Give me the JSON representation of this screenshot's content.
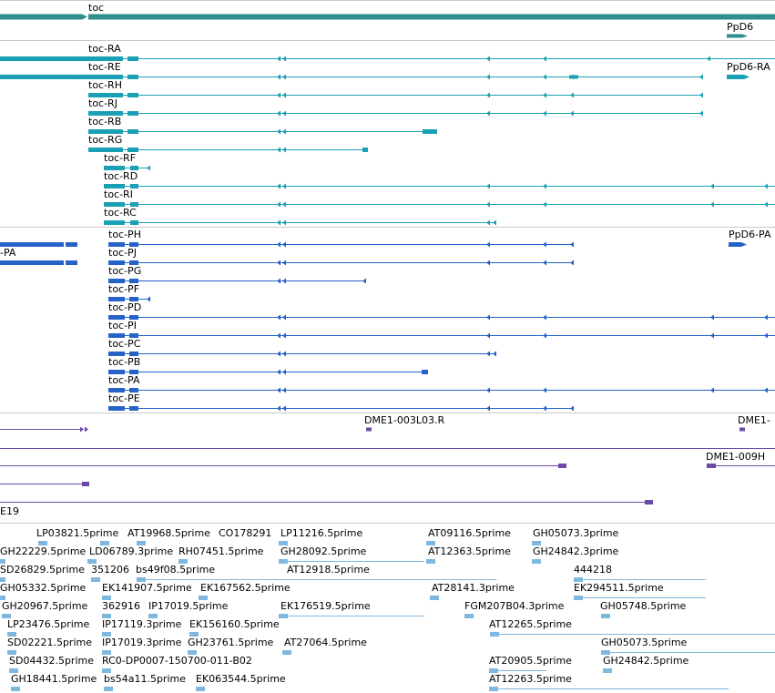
{
  "colors": {
    "gene": "#2f8f8c",
    "transcript": "#1aa0b4",
    "cds": "#2563c9",
    "oligo": "#6b4aa8",
    "est": "#7fb8df",
    "separator": "#c9c9c9"
  },
  "gene_track": {
    "labels": [
      "toc",
      "PpD6"
    ]
  },
  "transcript_track": {
    "labels": [
      "toc-RA",
      "toc-RE",
      "PpD6-RA",
      "toc-RH",
      "toc-RJ",
      "toc-RB",
      "toc-RG",
      "toc-RF",
      "toc-RD",
      "toc-RI",
      "toc-RC"
    ]
  },
  "cds_track": {
    "labels": [
      "toc-PH",
      "PpD6-PA",
      "-PA",
      "toc-PJ",
      "toc-PG",
      "toc-PF",
      "toc-PD",
      "toc-PI",
      "toc-PC",
      "toc-PB",
      "toc-PA",
      "toc-PE"
    ]
  },
  "oligo_track": {
    "labels": [
      "DME1-003L03.R",
      "DME1-",
      "DME1-009H",
      "E19"
    ]
  },
  "est_track": {
    "labels": [
      "LP03821.5prime",
      "AT19968.5prime",
      "CO178291",
      "LP11216.5prime",
      "AT09116.5prime",
      "GH05073.3prime",
      "GH22229.5prime",
      "LD06789.3prime",
      "RH07451.5prime",
      "GH28092.5prime",
      "AT12363.5prime",
      "GH24842.3prime",
      "SD26829.5prime",
      "351206",
      "bs49f08.5prime",
      "AT12918.5prime",
      "444218",
      "GH05332.5prime",
      "EK141907.5prime",
      "EK167562.5prime",
      "AT28141.3prime",
      "EK294511.5prime",
      "GH20967.5prime",
      "362916",
      "IP17019.5prime",
      "EK176519.5prime",
      "FGM207B04.3prime",
      "GH05748.5prime",
      "LP23476.5prime",
      "IP17119.3prime",
      "EK156160.5prime",
      "AT12265.5prime",
      "SD02221.5prime",
      "IP17019.3prime",
      "GH23761.5prime",
      "AT27064.5prime",
      "GH05073.5prime",
      "SD04432.5prime",
      "RC0-DP0007-150700-011-B02",
      "AT20905.5prime",
      "GH24842.5prime",
      "GH18441.5prime",
      "bs54a11.5prime",
      "EK063544.5prime",
      "AT12263.5prime"
    ]
  }
}
